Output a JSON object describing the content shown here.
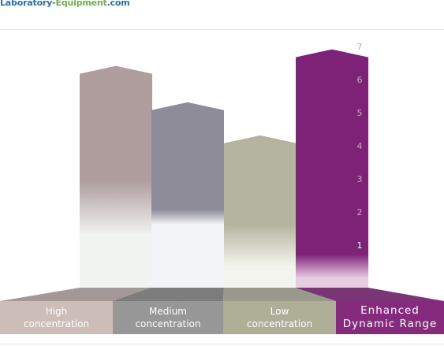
{
  "logo": {
    "part1": "Laboratory-",
    "part2": "Equipment",
    "part3": ".com"
  },
  "chart_data": {
    "type": "bar",
    "title": "",
    "xlabel": "",
    "ylabel": "",
    "categories": [
      "High\nconcentration",
      "Medium\nconcentration",
      "Low\nconcentration",
      "Enhanced\nDynamic Range"
    ],
    "values": [
      6.7,
      5.6,
      4.6,
      7.2
    ],
    "ylim": [
      0,
      7.6
    ],
    "yticks": [
      1,
      2,
      3,
      4,
      5,
      6,
      7
    ],
    "grid": false,
    "legend": "none",
    "colors": [
      "#b09e9e",
      "#8d8c98",
      "#b3b39e",
      "#7e2277"
    ],
    "fade_colors": [
      "#f1f3f1",
      "#f3f4f8",
      "#f3f4ee",
      "#e7cde2"
    ],
    "label_colors": [
      "#ccbdb8",
      "#979797",
      "#afaf98",
      "#852a7d"
    ]
  }
}
